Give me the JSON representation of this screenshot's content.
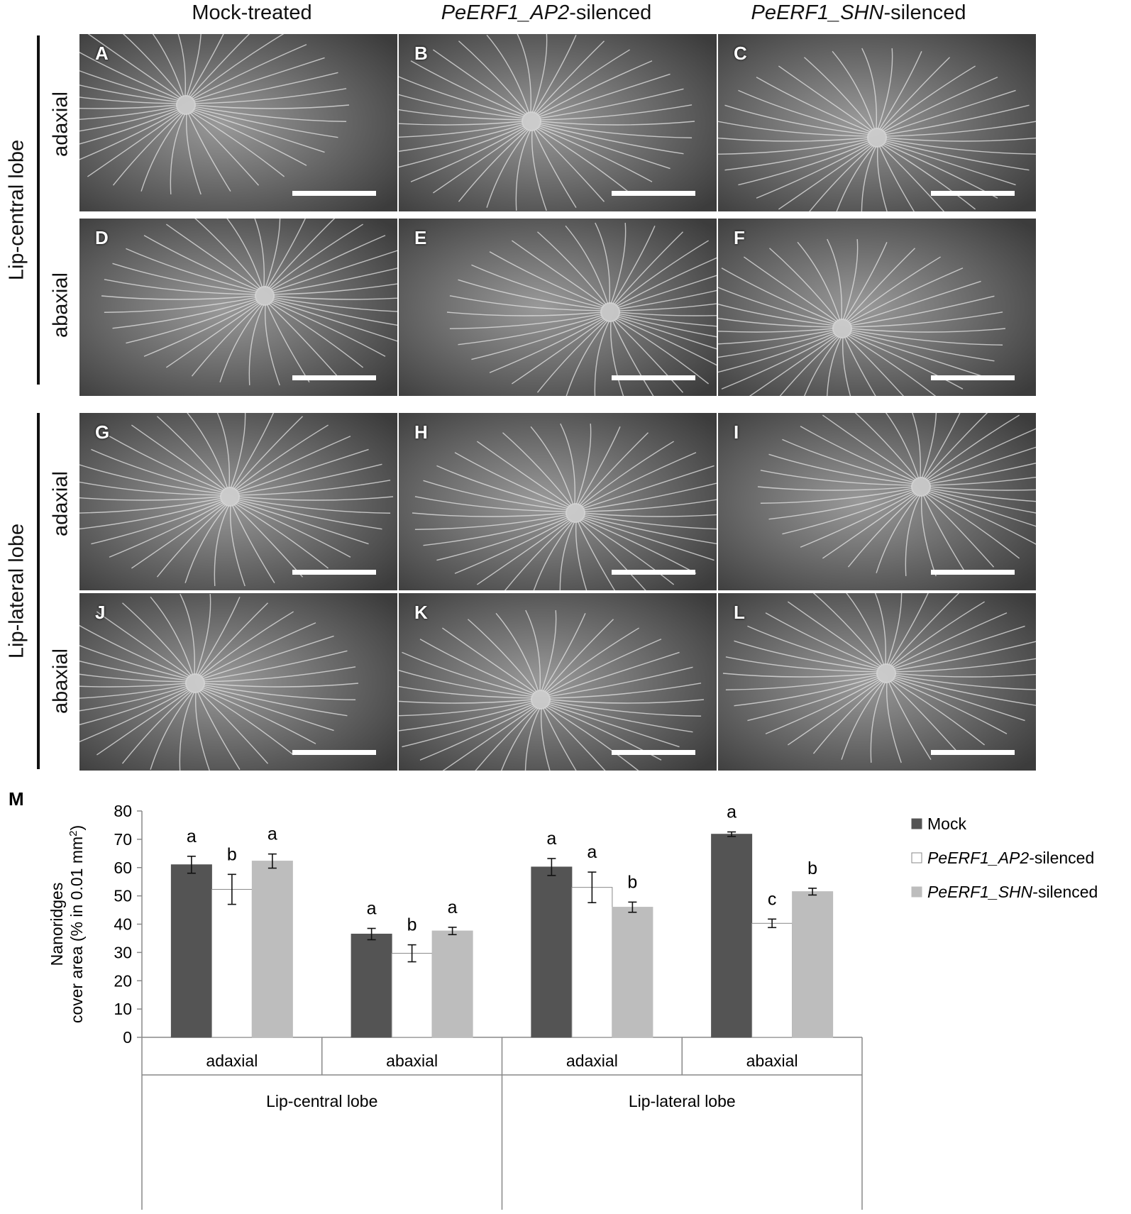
{
  "figure": {
    "columns": [
      {
        "prefix": "",
        "italic": "",
        "suffix": "Mock-treated"
      },
      {
        "prefix": "",
        "italic": "PeERF1_AP2",
        "suffix": "-silenced"
      },
      {
        "prefix": "",
        "italic": "PeERF1_SHN",
        "suffix": "-silenced"
      }
    ],
    "row_groups": [
      "Lip-central lobe",
      "Lip-lateral lobe"
    ],
    "side_labels": [
      "adaxial",
      "abaxial",
      "adaxial",
      "abaxial"
    ],
    "panel_letters": [
      "A",
      "B",
      "C",
      "D",
      "E",
      "F",
      "G",
      "H",
      "I",
      "J",
      "K",
      "L"
    ],
    "panel_M_letter": "M"
  },
  "chart_data": {
    "type": "bar",
    "ylabel_line1": "Nanoridges",
    "ylabel_line2": "cover area (% in 0.01 mm",
    "ylabel_sup": "2",
    "ylabel_close": ")",
    "ylim": [
      0,
      80
    ],
    "yticks": [
      "0",
      "10",
      "20",
      "30",
      "40",
      "50",
      "60",
      "70",
      "80"
    ],
    "grid": false,
    "legend_position": "right",
    "categories": [
      "adaxial",
      "abaxial",
      "adaxial",
      "abaxial"
    ],
    "groups": [
      "Lip-central lobe",
      "Lip-lateral lobe"
    ],
    "series": [
      {
        "name": "Mock",
        "name_italic": "",
        "name_suffix": "",
        "color": "#545454",
        "values": [
          61,
          36.5,
          60.2,
          71.8
        ],
        "errors": [
          3,
          2,
          3,
          0.8
        ],
        "letters": [
          "a",
          "a",
          "a",
          "a"
        ]
      },
      {
        "name": "",
        "name_italic": "PeERF1_AP2",
        "name_suffix": "-silenced",
        "color": "#ffffff",
        "values": [
          52.3,
          29.7,
          53,
          40.3
        ],
        "errors": [
          5.3,
          3,
          5.4,
          1.5
        ],
        "letters": [
          "b",
          "b",
          "a",
          "c"
        ]
      },
      {
        "name": "",
        "name_italic": "PeERF1_SHN",
        "name_suffix": "-silenced",
        "color": "#bdbdbd",
        "values": [
          62.3,
          37.6,
          46,
          51.5
        ],
        "errors": [
          2.5,
          1.3,
          1.8,
          1.2
        ],
        "letters": [
          "a",
          "a",
          "b",
          "b"
        ]
      }
    ]
  }
}
